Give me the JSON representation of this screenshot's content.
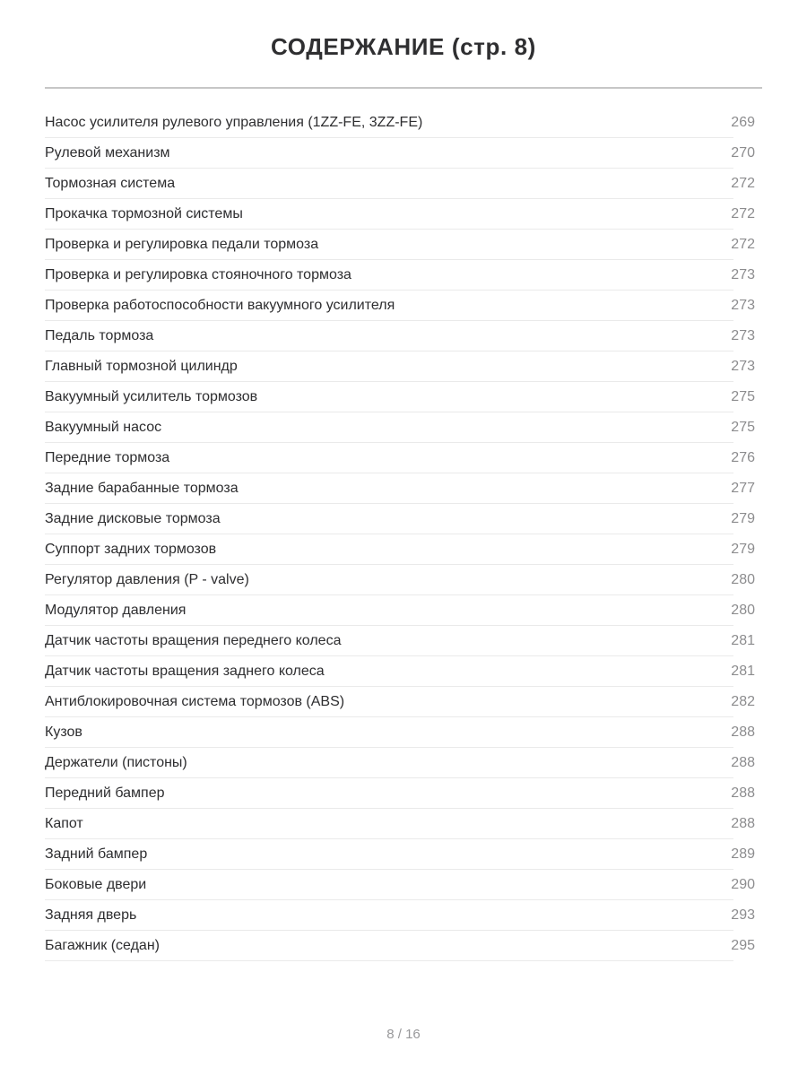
{
  "page": {
    "title": "СОДЕРЖАНИЕ (стр. 8)",
    "footer_page_indicator": "8 / 16"
  },
  "toc": {
    "items": [
      {
        "label": "Насос усилителя рулевого управления (1ZZ-FE, 3ZZ-FE)",
        "page": "269"
      },
      {
        "label": "Рулевой механизм",
        "page": "270"
      },
      {
        "label": "Тормозная система",
        "page": "272"
      },
      {
        "label": "Прокачка тормозной системы",
        "page": "272"
      },
      {
        "label": "Проверка и регулировка педали тормоза",
        "page": "272"
      },
      {
        "label": "Проверка и регулировка стояночного тормоза",
        "page": "273"
      },
      {
        "label": "Проверка работоспособности вакуумного усилителя",
        "page": "273"
      },
      {
        "label": "Педаль тормоза",
        "page": "273"
      },
      {
        "label": "Главный тормозной цилиндр",
        "page": "273"
      },
      {
        "label": "Вакуумный усилитель тормозов",
        "page": "275"
      },
      {
        "label": "Вакуумный насос",
        "page": "275"
      },
      {
        "label": "Передние тормоза",
        "page": "276"
      },
      {
        "label": "Задние барабанные тормоза",
        "page": "277"
      },
      {
        "label": "Задние дисковые тормоза",
        "page": "279"
      },
      {
        "label": "Суппорт задних тормозов",
        "page": "279"
      },
      {
        "label": "Регулятор давления (P - valve)",
        "page": "280"
      },
      {
        "label": "Модулятор давления",
        "page": "280"
      },
      {
        "label": "Датчик частоты вращения переднего колеса",
        "page": "281"
      },
      {
        "label": "Датчик частоты вращения заднего колеса",
        "page": "281"
      },
      {
        "label": "Антиблокировочная система тормозов (ABS)",
        "page": "282"
      },
      {
        "label": "Кузов",
        "page": "288"
      },
      {
        "label": "Держатели (пистоны)",
        "page": "288"
      },
      {
        "label": "Передний бампер",
        "page": "288"
      },
      {
        "label": "Капот",
        "page": "288"
      },
      {
        "label": "Задний бампер",
        "page": "289"
      },
      {
        "label": "Боковые двери",
        "page": "290"
      },
      {
        "label": "Задняя дверь",
        "page": "293"
      },
      {
        "label": "Багажник (седан)",
        "page": "295"
      }
    ]
  },
  "colors": {
    "title_text": "#2f2f31",
    "item_text": "#2e2e30",
    "page_number_text": "#8c8c8e",
    "title_divider": "#c6c6c6",
    "row_divider": "#eaeaea",
    "footer_text": "#98989a",
    "background": "#ffffff"
  }
}
